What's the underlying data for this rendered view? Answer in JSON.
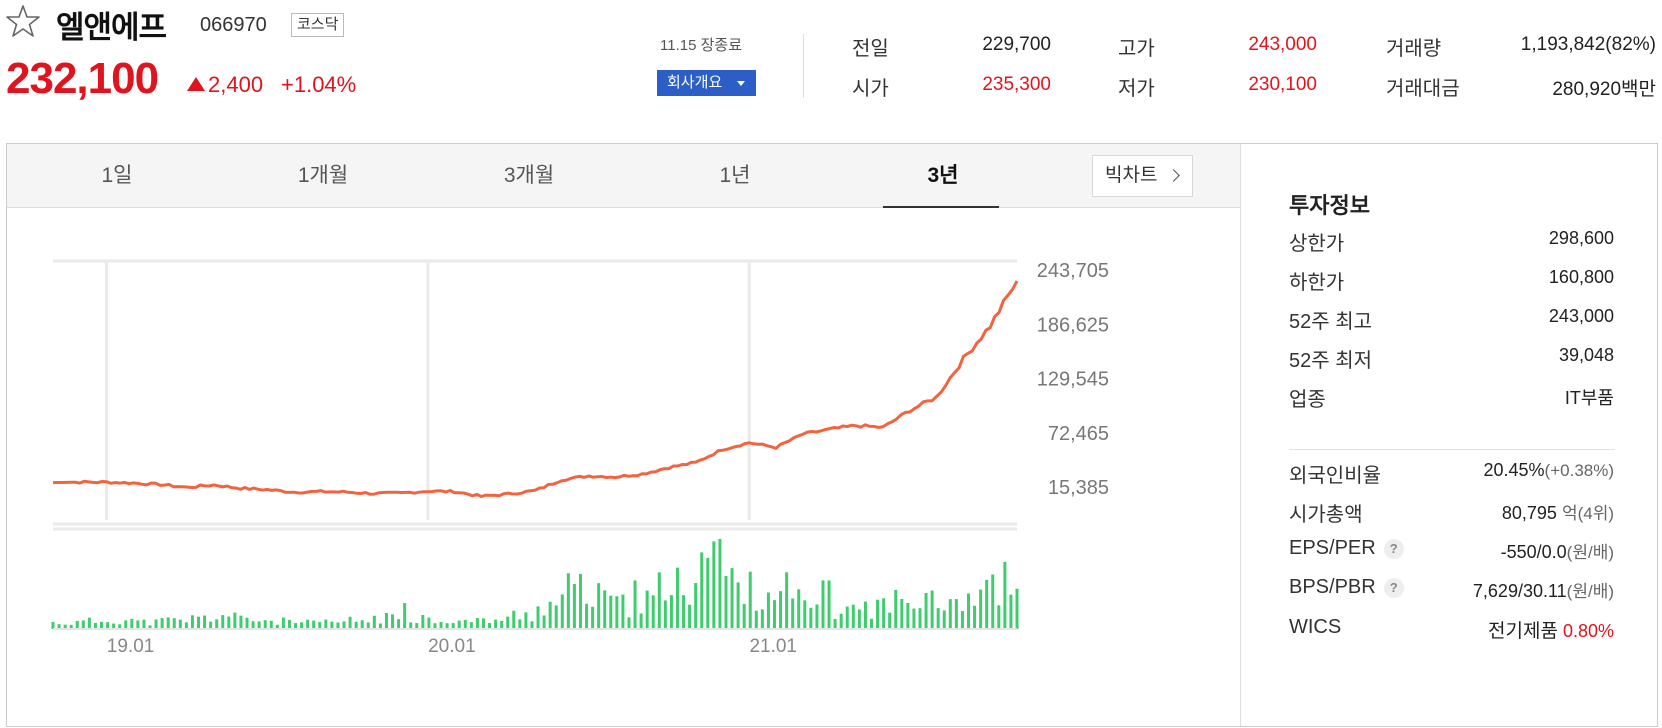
{
  "stock": {
    "name": "엘앤에프",
    "code": "066970",
    "market": "코스닥",
    "price": "232,100",
    "change": "2,400",
    "change_pct": "+1.04%",
    "direction": "up"
  },
  "session": {
    "date_status": "11.15 장종료",
    "company_button": "회사개요"
  },
  "quote": {
    "prev_close_label": "전일",
    "prev_close": "229,700",
    "open_label": "시가",
    "open": "235,300",
    "high_label": "고가",
    "high": "243,000",
    "low_label": "저가",
    "low": "230,100",
    "volume_label": "거래량",
    "volume": "1,193,842(82%)",
    "amount_label": "거래대금",
    "amount": "280,920",
    "amount_unit": "백만"
  },
  "tabs": [
    {
      "label": "1일"
    },
    {
      "label": "1개월"
    },
    {
      "label": "3개월"
    },
    {
      "label": "1년"
    },
    {
      "label": "3년"
    }
  ],
  "active_tab": "3년",
  "big_chart_label": "빅차트",
  "info_panel": {
    "title": "투자정보",
    "upper_limit_label": "상한가",
    "upper_limit": "298,600",
    "lower_limit_label": "하한가",
    "lower_limit": "160,800",
    "high52_label": "52주 최고",
    "high52": "243,000",
    "low52_label": "52주 최저",
    "low52": "39,048",
    "industry_label": "업종",
    "industry": "IT부품",
    "foreign_label": "외국인비율",
    "foreign": "20.45%",
    "foreign_change": "(+0.38%)",
    "mktcap_label": "시가총액",
    "mktcap": "80,795",
    "mktcap_unit": "억",
    "mktcap_rank": "(4위)",
    "eps_label": "EPS/PER",
    "eps": "-550/0.0",
    "eps_unit": "(원/배)",
    "bps_label": "BPS/PBR",
    "bps": "7,629/30.11",
    "bps_unit": "(원/배)",
    "wics_label": "WICS",
    "wics": "전기제품",
    "wics_pct": "0.80%",
    "help_glyph": "?"
  },
  "colors": {
    "up": "#e0141e",
    "down": "#1e4fd6",
    "line": "#f2643f",
    "volume": "#3fcc6e",
    "accent_button": "#2b5fc7"
  },
  "chart_data": {
    "type": "line",
    "y_ticks": [
      "243,705",
      "186,625",
      "129,545",
      "72,465",
      "15,385"
    ],
    "ylim": [
      15385,
      243705
    ],
    "x_ticks": [
      "19.01",
      "20.01",
      "21.01"
    ],
    "x": [
      "18.11",
      "18.12",
      "19.01",
      "19.02",
      "19.03",
      "19.04",
      "19.05",
      "19.06",
      "19.07",
      "19.08",
      "19.09",
      "19.10",
      "19.11",
      "19.12",
      "20.01",
      "20.02",
      "20.03",
      "20.04",
      "20.05",
      "20.06",
      "20.07",
      "20.08",
      "20.09",
      "20.10",
      "20.11",
      "20.12",
      "21.01",
      "21.02",
      "21.03",
      "21.04",
      "21.05",
      "21.06",
      "21.07",
      "21.08",
      "21.09",
      "21.10",
      "21.11"
    ],
    "series": [
      {
        "values": [
          20000,
          20500,
          20500,
          19500,
          18000,
          15000,
          17500,
          14000,
          12500,
          10000,
          10500,
          10000,
          8500,
          9000,
          11000,
          10500,
          5500,
          8000,
          11500,
          23000,
          27000,
          26000,
          29000,
          36000,
          41000,
          55000,
          62000,
          57000,
          71000,
          76000,
          80000,
          78000,
          96000,
          110000,
          150000,
          185000,
          232100
        ]
      },
      {
        "values": [
          8,
          10,
          12,
          9,
          11,
          14,
          18,
          12,
          10,
          8,
          9,
          11,
          14,
          16,
          12,
          10,
          12,
          18,
          30,
          50,
          40,
          30,
          35,
          55,
          100,
          60,
          50,
          35,
          30,
          25,
          28,
          35,
          55,
          40,
          45,
          60,
          45
        ]
      }
    ]
  }
}
